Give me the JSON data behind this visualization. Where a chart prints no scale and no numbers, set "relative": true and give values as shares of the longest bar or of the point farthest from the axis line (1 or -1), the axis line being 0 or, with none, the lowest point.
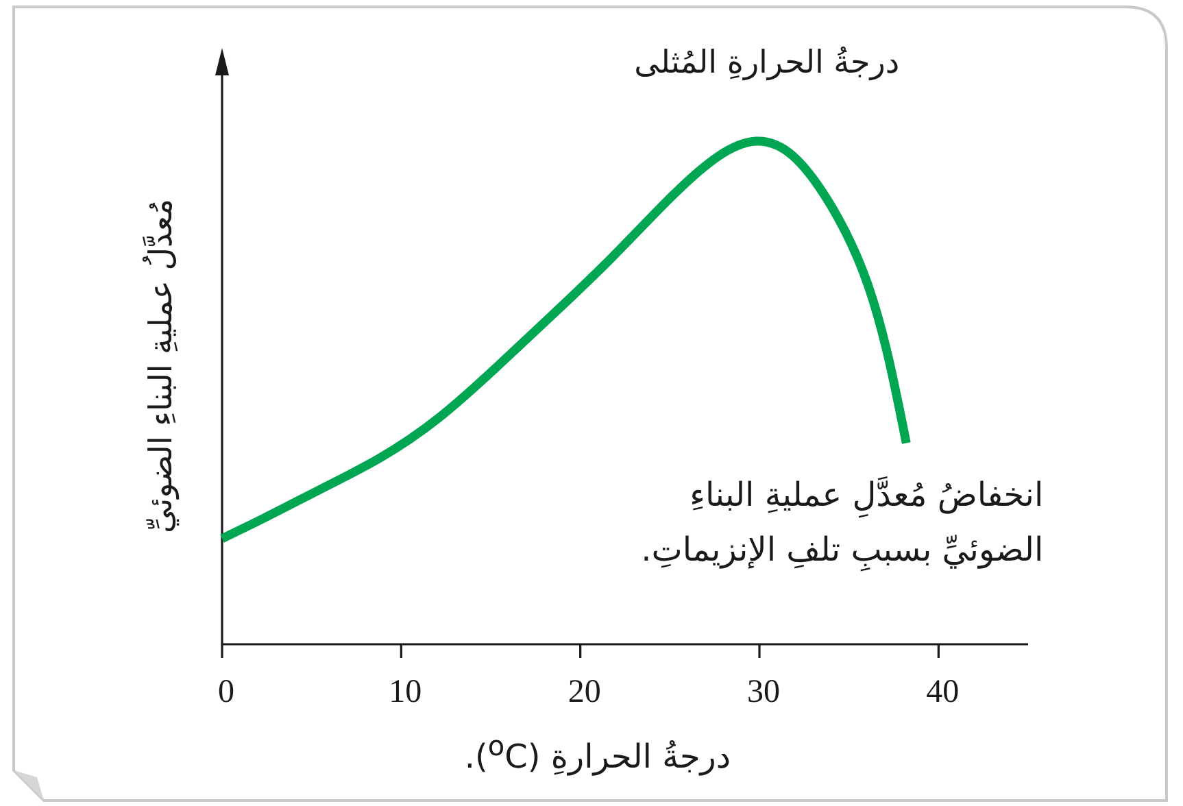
{
  "chart_data": {
    "type": "line",
    "xlabel": "درجةُ الحرارةِ ($^{o}$C).",
    "ylabel": "مُعدَّلُ عمليةِ البناءِ الضوئيِّ",
    "x": [
      0,
      2.3,
      5.6,
      8.8,
      12.1,
      15.3,
      18.6,
      21.8,
      25.1,
      27.7,
      29.8,
      31.9,
      33.5,
      34.8,
      36.1,
      37.2,
      38.2
    ],
    "values": [
      0.21,
      0.25,
      0.31,
      0.37,
      0.45,
      0.55,
      0.66,
      0.77,
      0.89,
      0.97,
      1.0,
      0.97,
      0.9,
      0.82,
      0.71,
      0.57,
      0.4
    ],
    "color": "#00a651",
    "relative": true,
    "xlim": [
      0,
      45
    ],
    "xticks": [
      0,
      10,
      20,
      30,
      40
    ],
    "marker": "none",
    "line_style": "solid",
    "annotations": [
      {
        "text": "درجةُ الحرارةِ المُثلى",
        "x": 29.8,
        "y": 1.0
      },
      {
        "text": "انخفاضُ مُعدَّلِ عمليةِ البناءِ الضوئيِّ بسببِ تلفِ الإنزيماتِ.",
        "x": 38.2,
        "y": 0.4
      }
    ]
  }
}
